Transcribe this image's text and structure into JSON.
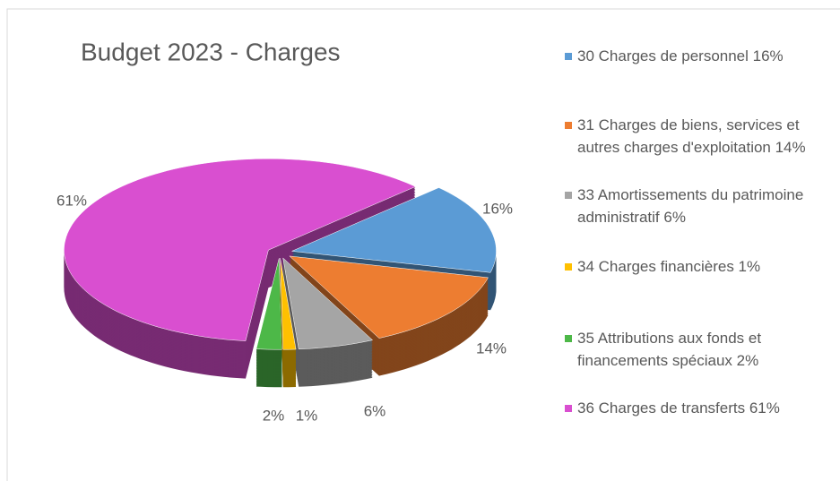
{
  "chart_data": {
    "type": "pie",
    "title": "Budget 2023 - Charges",
    "categories": [
      "30 Charges de personnel 16%",
      "31 Charges de biens, services et autres charges d'exploitation 14%",
      "33 Amortissements du patrimoine administratif 6%",
      "34 Charges financières 1%",
      "35 Attributions aux fonds et financements spéciaux 2%",
      "36 Charges de transferts 61%"
    ],
    "values": [
      16,
      14,
      6,
      1,
      2,
      61
    ],
    "value_labels": [
      "16%",
      "14%",
      "6%",
      "1%",
      "2%",
      "61%"
    ],
    "colors": [
      "#5b9bd5",
      "#ed7d31",
      "#a5a5a5",
      "#ffc000",
      "#4db848",
      "#d94fd0"
    ],
    "legend": "right"
  }
}
